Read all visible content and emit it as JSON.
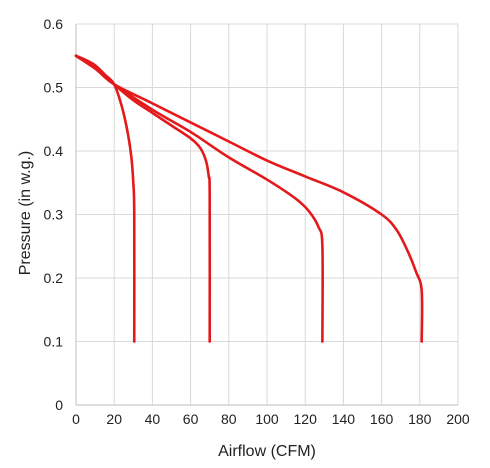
{
  "chart_data": {
    "type": "line",
    "title": "",
    "xlabel": "Airflow (CFM)",
    "ylabel": "Pressure (in w.g.)",
    "xlim": [
      0,
      200
    ],
    "ylim": [
      0,
      0.6
    ],
    "x_ticks": [
      0,
      20,
      40,
      60,
      80,
      100,
      120,
      140,
      160,
      180,
      200
    ],
    "y_ticks": [
      0,
      0.1,
      0.2,
      0.3,
      0.4,
      0.5,
      0.6
    ],
    "x_tick_labels": [
      "0",
      "20",
      "40",
      "60",
      "80",
      "100",
      "120",
      "140",
      "160",
      "180",
      "200"
    ],
    "y_tick_labels": [
      "0",
      "0.1",
      "0.2",
      "0.3",
      "0.4",
      "0.5",
      "0.6"
    ],
    "grid": true,
    "legend": "none",
    "line_color": "#e3191c",
    "series": [
      {
        "points": [
          [
            0,
            0.55
          ],
          [
            5,
            0.54
          ],
          [
            10,
            0.53
          ],
          [
            15,
            0.52
          ],
          [
            20,
            0.505
          ],
          [
            24,
            0.47
          ],
          [
            27,
            0.43
          ],
          [
            29,
            0.39
          ],
          [
            30,
            0.35
          ],
          [
            30.5,
            0.3
          ],
          [
            30.5,
            0.1
          ]
        ]
      },
      {
        "points": [
          [
            0,
            0.55
          ],
          [
            10,
            0.535
          ],
          [
            20,
            0.505
          ],
          [
            30,
            0.48
          ],
          [
            40,
            0.46
          ],
          [
            50,
            0.44
          ],
          [
            60,
            0.42
          ],
          [
            65,
            0.405
          ],
          [
            68,
            0.385
          ],
          [
            69.5,
            0.36
          ],
          [
            70,
            0.33
          ],
          [
            70,
            0.1
          ]
        ]
      },
      {
        "points": [
          [
            0,
            0.55
          ],
          [
            10,
            0.53
          ],
          [
            20,
            0.505
          ],
          [
            40,
            0.465
          ],
          [
            60,
            0.43
          ],
          [
            80,
            0.39
          ],
          [
            100,
            0.355
          ],
          [
            115,
            0.325
          ],
          [
            122,
            0.305
          ],
          [
            127,
            0.28
          ],
          [
            129,
            0.25
          ],
          [
            129,
            0.1
          ]
        ]
      },
      {
        "points": [
          [
            0,
            0.55
          ],
          [
            10,
            0.53
          ],
          [
            20,
            0.505
          ],
          [
            40,
            0.475
          ],
          [
            60,
            0.445
          ],
          [
            80,
            0.415
          ],
          [
            100,
            0.385
          ],
          [
            120,
            0.36
          ],
          [
            140,
            0.335
          ],
          [
            160,
            0.3
          ],
          [
            168,
            0.275
          ],
          [
            174,
            0.24
          ],
          [
            178,
            0.21
          ],
          [
            181,
            0.18
          ],
          [
            181,
            0.1
          ]
        ]
      }
    ]
  }
}
